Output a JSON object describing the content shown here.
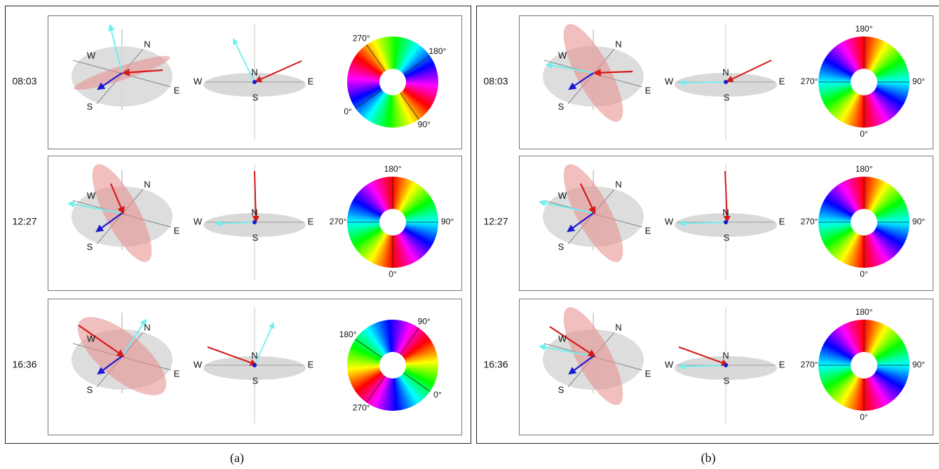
{
  "panels": [
    {
      "caption": "(a)",
      "rows": [
        {
          "time": "08:03",
          "sphere_labels": [
            "W",
            "N",
            "E",
            "S"
          ],
          "compass_labels": [
            "W",
            "N",
            "E",
            "S"
          ],
          "wheel_labels": [
            "0°",
            "90°",
            "180°",
            "270°"
          ]
        },
        {
          "time": "12:27",
          "sphere_labels": [
            "W",
            "N",
            "E",
            "S"
          ],
          "compass_labels": [
            "W",
            "N",
            "E",
            "S"
          ],
          "wheel_labels": [
            "0°",
            "90°",
            "180°",
            "270°"
          ]
        },
        {
          "time": "16:36",
          "sphere_labels": [
            "W",
            "N",
            "E",
            "S"
          ],
          "compass_labels": [
            "W",
            "N",
            "E",
            "S"
          ],
          "wheel_labels": [
            "0°",
            "90°",
            "180°",
            "270°"
          ]
        }
      ]
    },
    {
      "caption": "(b)",
      "rows": [
        {
          "time": "08:03",
          "sphere_labels": [
            "W",
            "N",
            "E",
            "S"
          ],
          "compass_labels": [
            "W",
            "N",
            "E",
            "S"
          ],
          "wheel_labels": [
            "0°",
            "90°",
            "180°",
            "270°"
          ]
        },
        {
          "time": "12:27",
          "sphere_labels": [
            "W",
            "N",
            "E",
            "S"
          ],
          "compass_labels": [
            "W",
            "N",
            "E",
            "S"
          ],
          "wheel_labels": [
            "0°",
            "90°",
            "180°",
            "270°"
          ]
        },
        {
          "time": "16:36",
          "sphere_labels": [
            "W",
            "N",
            "E",
            "S"
          ],
          "compass_labels": [
            "W",
            "N",
            "E",
            "S"
          ],
          "wheel_labels": [
            "0°",
            "90°",
            "180°",
            "270°"
          ]
        }
      ]
    }
  ]
}
